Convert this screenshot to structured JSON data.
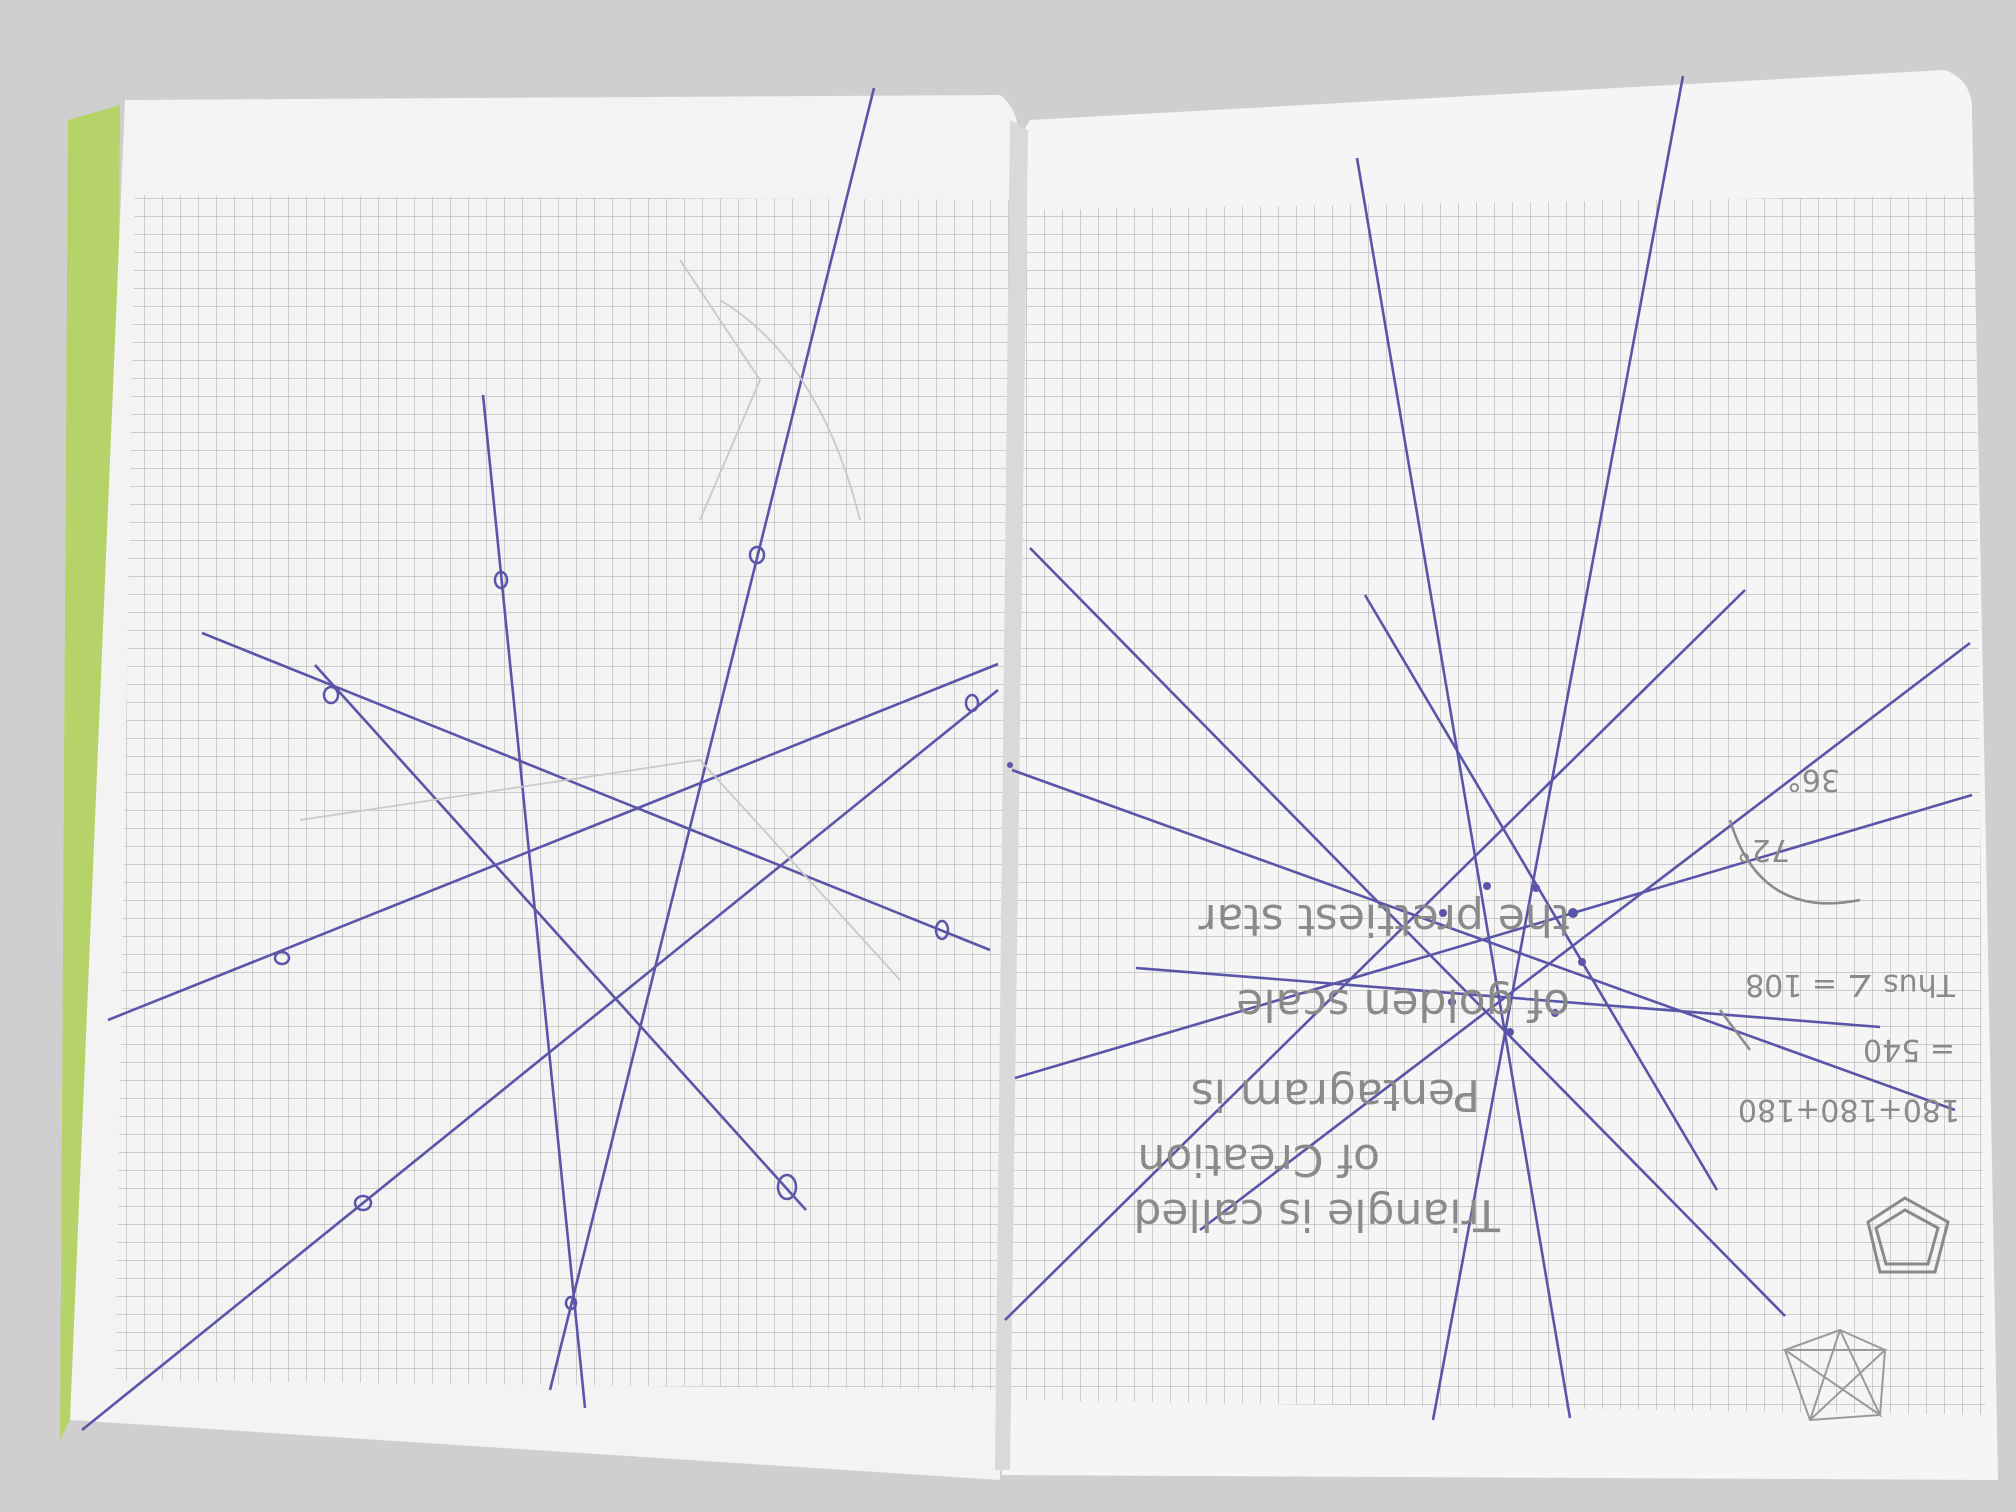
{
  "photo": {
    "subject": "Open graph-paper notebook with hand-drawn star constructions",
    "colors": {
      "background": "#cfcfcf",
      "paper": "#f4f4f4",
      "grid": "#b9b9b9",
      "ink": "#5a55a8",
      "pencil": "#8a8a8a",
      "cover_edge": "#b6d36a"
    }
  },
  "notes": {
    "line1": "Triangle is called",
    "line2": "of Creation",
    "line3": "Pentagram is",
    "line4": "of golden scale",
    "line5": "the prettiest star",
    "angle_sum": "180+180+180",
    "angle_total": "= 540",
    "angle_value": "= 108",
    "angle_note": "Thus ∠ = 108",
    "small_angle": "36°",
    "small_angle_2": "72°"
  }
}
